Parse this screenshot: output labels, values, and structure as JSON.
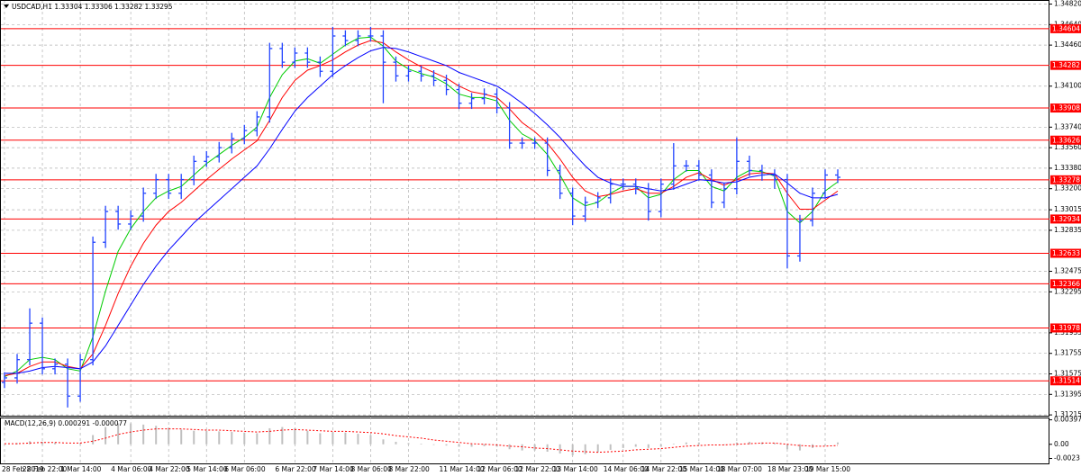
{
  "chart_data": [
    {
      "type": "candlestick",
      "title": "USDCAD,H1 1.33304 1.33306 1.33282 1.33295",
      "categories": [
        "28 Feb 2019",
        null,
        null,
        "28 Feb 22:00",
        null,
        null,
        "1 Mar 14:00",
        null,
        null,
        null,
        "4 Mar 06:00",
        null,
        null,
        "4 Mar 22:00",
        null,
        null,
        "5 Mar 14:00",
        null,
        null,
        "6 Mar 06:00",
        null,
        null,
        null,
        "6 Mar 22:00",
        null,
        null,
        "7 Mar 14:00",
        null,
        null,
        "8 Mar 06:00",
        null,
        null,
        "8 Mar 22:00",
        null,
        null,
        null,
        "11 Mar 14:00",
        null,
        null,
        "12 Mar 06:00",
        null,
        null,
        "12 Mar 22:00",
        null,
        null,
        "13 Mar 14:00",
        null,
        null,
        null,
        "14 Mar 06:00",
        null,
        null,
        "14 Mar 22:00",
        null,
        null,
        "15 Mar 14:00",
        null,
        null,
        "18 Mar 07:00",
        null,
        null,
        null,
        "18 Mar 23:00",
        null,
        null,
        "19 Mar 15:00",
        null
      ],
      "open": [
        1.315,
        1.3154,
        1.317,
        1.3202,
        1.3162,
        1.3166,
        1.3138,
        1.317,
        1.3273,
        1.33,
        1.3289,
        1.3296,
        1.3316,
        1.3328,
        1.3316,
        1.3328,
        1.3344,
        1.3348,
        1.3356,
        1.3364,
        1.3371,
        1.3383,
        1.3443,
        1.3431,
        1.3439,
        1.3431,
        1.3423,
        1.3454,
        1.345,
        1.3454,
        1.3454,
        1.3431,
        1.3419,
        1.3423,
        1.3419,
        1.3415,
        1.3407,
        1.3395,
        1.3399,
        1.3403,
        1.3391,
        1.336,
        1.336,
        1.336,
        1.3336,
        1.3316,
        1.3296,
        1.3308,
        1.3312,
        1.3324,
        1.3324,
        1.332,
        1.33,
        1.3324,
        1.334,
        1.334,
        1.3332,
        1.3308,
        1.332,
        1.3344,
        1.3336,
        1.3332,
        1.3328,
        1.3261,
        1.3292,
        1.3316,
        1.3332
      ],
      "high": [
        1.3159,
        1.3175,
        1.3215,
        1.3207,
        1.3171,
        1.3171,
        1.3175,
        1.3278,
        1.3305,
        1.3305,
        1.3301,
        1.3321,
        1.3333,
        1.3333,
        1.3333,
        1.3349,
        1.3353,
        1.3361,
        1.3369,
        1.3376,
        1.3388,
        1.3448,
        1.3448,
        1.3444,
        1.3444,
        1.3436,
        1.3462,
        1.3459,
        1.3459,
        1.3462,
        1.3459,
        1.3436,
        1.3428,
        1.3428,
        1.3424,
        1.342,
        1.3412,
        1.3404,
        1.3408,
        1.3408,
        1.3396,
        1.3365,
        1.3365,
        1.3365,
        1.3341,
        1.3321,
        1.3313,
        1.3317,
        1.3329,
        1.3329,
        1.3329,
        1.3325,
        1.3329,
        1.336,
        1.3345,
        1.3345,
        1.3337,
        1.3325,
        1.3365,
        1.3349,
        1.3341,
        1.3337,
        1.3333,
        1.3297,
        1.3321,
        1.3337,
        1.3337
      ],
      "low": [
        1.3145,
        1.3149,
        1.3165,
        1.3157,
        1.3157,
        1.3128,
        1.3133,
        1.3165,
        1.3268,
        1.3284,
        1.3284,
        1.3291,
        1.3311,
        1.3311,
        1.3311,
        1.3323,
        1.3339,
        1.3343,
        1.3351,
        1.3359,
        1.3366,
        1.3378,
        1.3426,
        1.3426,
        1.3426,
        1.3418,
        1.3418,
        1.3445,
        1.3445,
        1.3449,
        1.3395,
        1.3414,
        1.3414,
        1.3414,
        1.341,
        1.3402,
        1.339,
        1.339,
        1.3394,
        1.3386,
        1.3355,
        1.3355,
        1.3355,
        1.3331,
        1.3311,
        1.3288,
        1.3291,
        1.3303,
        1.3307,
        1.3319,
        1.3315,
        1.3292,
        1.3295,
        1.3319,
        1.3335,
        1.3327,
        1.3303,
        1.3303,
        1.3315,
        1.3331,
        1.3327,
        1.332,
        1.325,
        1.3256,
        1.3287,
        1.3311,
        1.3325
      ],
      "close": [
        1.3154,
        1.317,
        1.3202,
        1.3162,
        1.3166,
        1.3138,
        1.317,
        1.3273,
        1.33,
        1.3289,
        1.3296,
        1.3316,
        1.3328,
        1.3316,
        1.3328,
        1.3344,
        1.3348,
        1.3356,
        1.3364,
        1.3371,
        1.3383,
        1.3443,
        1.3431,
        1.3439,
        1.3431,
        1.3423,
        1.3454,
        1.345,
        1.3454,
        1.3454,
        1.3431,
        1.3419,
        1.3423,
        1.3419,
        1.3415,
        1.3407,
        1.3395,
        1.3399,
        1.3403,
        1.3391,
        1.336,
        1.336,
        1.336,
        1.3336,
        1.3316,
        1.3296,
        1.3308,
        1.3312,
        1.3324,
        1.3324,
        1.332,
        1.33,
        1.3324,
        1.334,
        1.334,
        1.3332,
        1.3308,
        1.332,
        1.3344,
        1.3336,
        1.3332,
        1.3328,
        1.3261,
        1.3292,
        1.3316,
        1.3332,
        1.333
      ],
      "color": "#2244ff",
      "lines": [
        {
          "color": "#00cc00",
          "values": [
            1.3155,
            1.316,
            1.317,
            1.3172,
            1.317,
            1.3162,
            1.316,
            1.319,
            1.323,
            1.3265,
            1.3285,
            1.33,
            1.3312,
            1.3318,
            1.3322,
            1.3332,
            1.3342,
            1.335,
            1.3358,
            1.3365,
            1.3374,
            1.34,
            1.342,
            1.3432,
            1.3434,
            1.343,
            1.3438,
            1.3446,
            1.3452,
            1.3453,
            1.3445,
            1.3432,
            1.3425,
            1.3421,
            1.3418,
            1.3412,
            1.3403,
            1.34,
            1.34,
            1.3397,
            1.338,
            1.3368,
            1.3362,
            1.335,
            1.3332,
            1.3312,
            1.3305,
            1.3308,
            1.3316,
            1.3322,
            1.3322,
            1.3312,
            1.3315,
            1.3328,
            1.3336,
            1.3336,
            1.3322,
            1.3318,
            1.333,
            1.3336,
            1.3335,
            1.3331,
            1.33,
            1.329,
            1.33,
            1.3318,
            1.3326
          ]
        },
        {
          "color": "#ff0000",
          "values": [
            1.3156,
            1.3158,
            1.3164,
            1.3168,
            1.3168,
            1.3164,
            1.3162,
            1.3175,
            1.32,
            1.3228,
            1.3252,
            1.3272,
            1.3288,
            1.33,
            1.3308,
            1.3318,
            1.3328,
            1.3337,
            1.3346,
            1.3354,
            1.3362,
            1.338,
            1.34,
            1.3415,
            1.3424,
            1.3428,
            1.3433,
            1.344,
            1.3446,
            1.345,
            1.3448,
            1.344,
            1.3433,
            1.3427,
            1.3422,
            1.3417,
            1.341,
            1.3405,
            1.3403,
            1.34,
            1.339,
            1.3378,
            1.337,
            1.336,
            1.3346,
            1.333,
            1.3318,
            1.3313,
            1.3315,
            1.3318,
            1.332,
            1.3316,
            1.3316,
            1.3322,
            1.333,
            1.3334,
            1.3328,
            1.3323,
            1.3328,
            1.3333,
            1.3334,
            1.3333,
            1.3316,
            1.3302,
            1.3302,
            1.331,
            1.3318
          ]
        },
        {
          "color": "#0000ff",
          "values": [
            1.3158,
            1.3158,
            1.316,
            1.3163,
            1.3164,
            1.3163,
            1.3162,
            1.3168,
            1.3182,
            1.32,
            1.3218,
            1.3236,
            1.3252,
            1.3266,
            1.3278,
            1.329,
            1.33,
            1.331,
            1.332,
            1.333,
            1.334,
            1.3355,
            1.3372,
            1.3388,
            1.34,
            1.341,
            1.342,
            1.3428,
            1.3435,
            1.3441,
            1.3444,
            1.3443,
            1.344,
            1.3436,
            1.3432,
            1.3428,
            1.3422,
            1.3418,
            1.3414,
            1.341,
            1.3403,
            1.3395,
            1.3386,
            1.3376,
            1.3365,
            1.3352,
            1.334,
            1.333,
            1.3325,
            1.3322,
            1.3322,
            1.332,
            1.3318,
            1.332,
            1.3324,
            1.3328,
            1.3327,
            1.3325,
            1.3326,
            1.333,
            1.3332,
            1.3333,
            1.3325,
            1.3316,
            1.3312,
            1.3312,
            1.3315
          ]
        }
      ],
      "levels": [
        1.34604,
        1.34282,
        1.33908,
        1.33626,
        1.33278,
        1.32934,
        1.32633,
        1.32366,
        1.31978,
        1.31514
      ],
      "level_color": "#ff0000",
      "ylim": [
        1.312,
        1.3484
      ],
      "yticks": [
        {
          "value": 1.3482,
          "label": "1.34820"
        },
        {
          "value": 1.3464,
          "label": "1.34640"
        },
        {
          "value": 1.3446,
          "label": "1.34460"
        },
        {
          "value": 1.341,
          "label": "1.34100"
        },
        {
          "value": 1.3374,
          "label": "1.33740"
        },
        {
          "value": 1.3356,
          "label": "1.33560"
        },
        {
          "value": 1.3338,
          "label": "1.33380"
        },
        {
          "value": 1.332,
          "label": "1.33200"
        },
        1.33015,
        1.32835,
        1.32475,
        1.32295,
        1.31935,
        1.31755,
        1.31575,
        1.31395,
        1.31215
      ],
      "grid": true
    },
    {
      "type": "macd",
      "title": "MACD(12,26,9) 0.000291 -0.000077",
      "histogram": [
        0.0001,
        0.0002,
        0.0005,
        0.0004,
        0.0003,
        0.0,
        0.0002,
        0.0015,
        0.0028,
        0.0034,
        0.0034,
        0.0032,
        0.003,
        0.0027,
        0.0024,
        0.0022,
        0.0022,
        0.0021,
        0.002,
        0.0019,
        0.0018,
        0.0026,
        0.0028,
        0.0026,
        0.0022,
        0.0018,
        0.002,
        0.0019,
        0.0017,
        0.0015,
        0.0008,
        0.0004,
        0.0002,
        0.0001,
        -0.0001,
        -0.0002,
        -0.0004,
        -0.0004,
        -0.0003,
        -0.0004,
        -0.0008,
        -0.001,
        -0.001,
        -0.0012,
        -0.0015,
        -0.0018,
        -0.0016,
        -0.0013,
        -0.0009,
        -0.0006,
        -0.0004,
        -0.0006,
        -0.0004,
        0.0001,
        0.0003,
        0.0003,
        0.0,
        -0.0001,
        0.0003,
        0.0004,
        0.0003,
        0.0002,
        -0.0008,
        -0.001,
        -0.0006,
        -0.0001,
        0.0003
      ],
      "signal": [
        0.0001,
        0.0001,
        0.0002,
        0.0003,
        0.0003,
        0.0002,
        0.0002,
        0.0005,
        0.001,
        0.0016,
        0.002,
        0.0023,
        0.0025,
        0.0025,
        0.0025,
        0.0024,
        0.0023,
        0.0023,
        0.0022,
        0.0021,
        0.002,
        0.0021,
        0.0023,
        0.0024,
        0.0023,
        0.0022,
        0.0021,
        0.0021,
        0.002,
        0.0019,
        0.0017,
        0.0014,
        0.0012,
        0.001,
        0.0007,
        0.0005,
        0.0003,
        0.0001,
        0.0,
        -0.0001,
        -0.0003,
        -0.0004,
        -0.0006,
        -0.0007,
        -0.0009,
        -0.0011,
        -0.0012,
        -0.0013,
        -0.0012,
        -0.0011,
        -0.0009,
        -0.0008,
        -0.0007,
        -0.0005,
        -0.0003,
        -0.0002,
        -0.0001,
        -0.0001,
        0.0,
        0.0001,
        0.0002,
        0.0002,
        0.0,
        -0.0002,
        -0.0003,
        -0.0003,
        -0.0002
      ],
      "histogram_color": "#c0c0c0",
      "signal_color": "#ff0000",
      "ylim": [
        -0.0031,
        0.0042
      ],
      "yticks": [
        0.003973,
        {
          "value": 0,
          "label": "0.00"
        },
        -0.0023
      ]
    }
  ]
}
